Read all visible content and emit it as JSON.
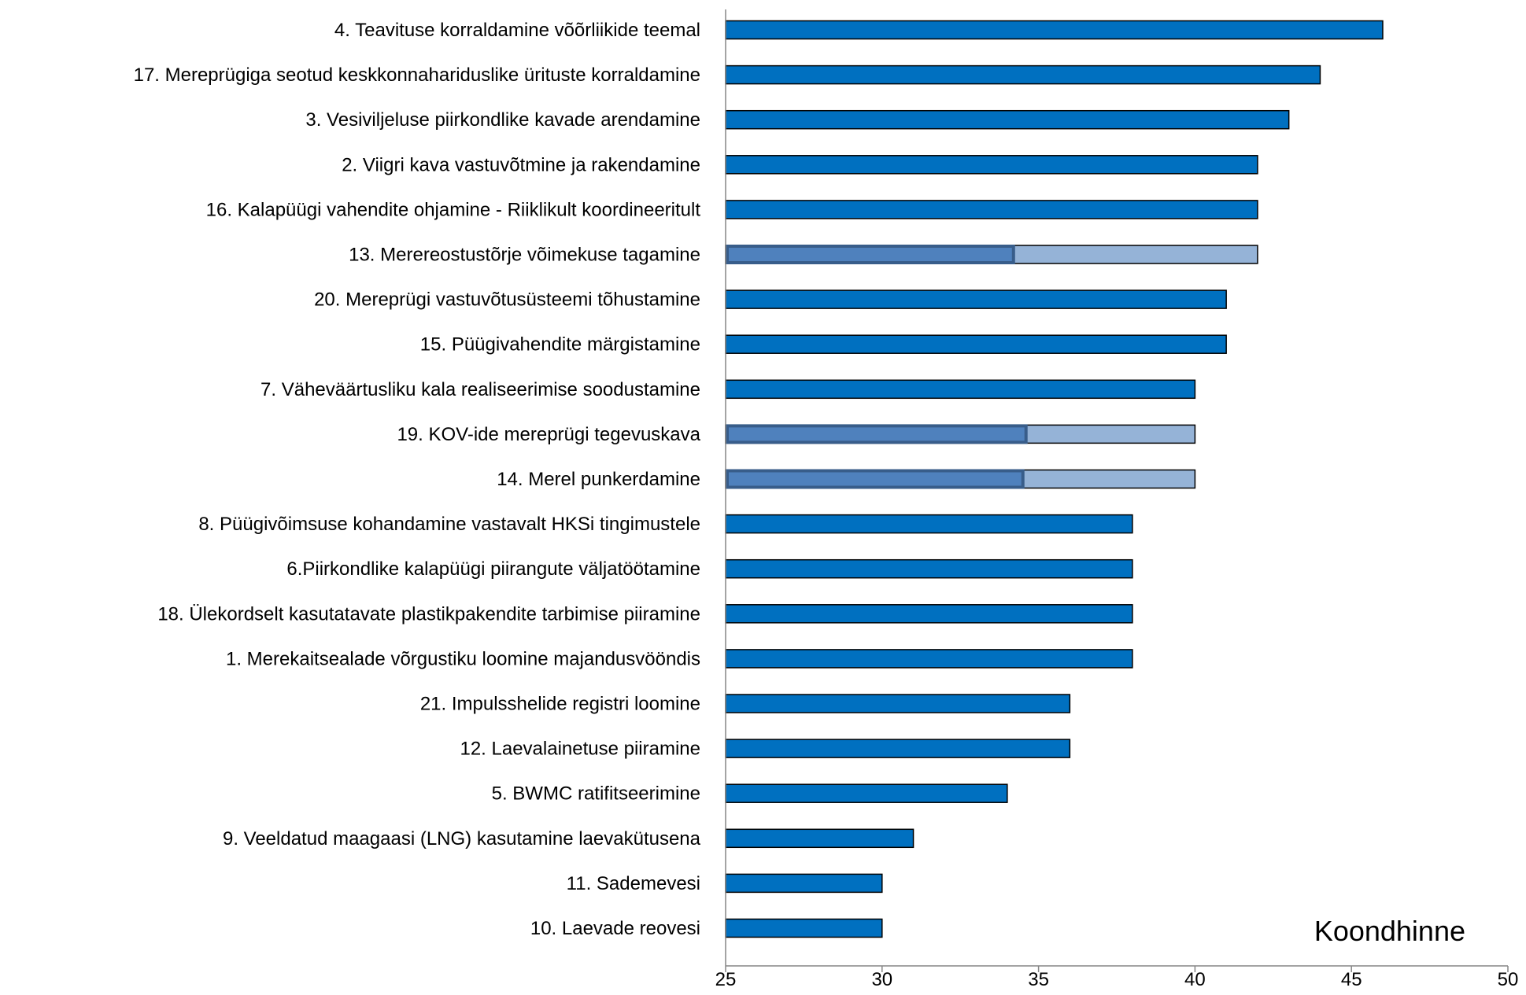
{
  "chart_data": {
    "type": "bar",
    "orientation": "horizontal",
    "categories": [
      "4. Teavituse korraldamine võõrliikide teemal",
      "17. Mereprügiga seotud keskkonnahariduslike ürituste korraldamine",
      "3. Vesiviljeluse piirkondlike kavade arendamine",
      "2. Viigri kava vastuvõtmine ja rakendamine",
      "16. Kalapüügi vahendite ohjamine - Riiklikult koordineeritult",
      "13. Merereostustõrje võimekuse tagamine",
      "20. Mereprügi vastuvõtusüsteemi tõhustamine",
      "15. Püügivahendite märgistamine",
      "7. Väheväärtusliku kala realiseerimise soodustamine",
      "19. KOV-ide mereprügi tegevuskava",
      "14. Merel punkerdamine",
      "8. Püügivõimsuse kohandamine vastavalt HKSi tingimustele",
      "6.Piirkondlike kalapüügi piirangute väljatöötamine",
      "18. Ülekordselt kasutatavate plastikpakendite tarbimise piiramine",
      "1. Merekaitsealade võrgustiku loomine majandusvööndis",
      "21. Impulsshelide registri loomine",
      "12. Laevalainetuse piiramine",
      "5. BWMC ratifitseerimine",
      "9. Veeldatud maagaasi (LNG) kasutamine laevakütusena",
      "11. Sademevesi",
      "10. Laevade reovesi"
    ],
    "series": [
      {
        "values": [
          46,
          44,
          43,
          42,
          42,
          42,
          41,
          41,
          40,
          40,
          40,
          38,
          38,
          38,
          38,
          36,
          36,
          34,
          31,
          30,
          30
        ]
      },
      {
        "values": [
          null,
          null,
          null,
          null,
          null,
          34.2,
          null,
          null,
          null,
          34.6,
          34.5,
          null,
          null,
          null,
          null,
          null,
          null,
          null,
          null,
          null,
          null
        ]
      }
    ],
    "highlighted_categories": [
      "13. Merereostustõrje võimekuse tagamine",
      "19. KOV-ide mereprügi tegevuskava",
      "14. Merel punkerdamine"
    ],
    "xlabel": "Koondhinne",
    "xlim": [
      25,
      50
    ],
    "xticks": [
      25,
      30,
      35,
      40,
      45,
      50
    ],
    "grid": false,
    "colors": {
      "bar": "#0070C0",
      "bar_light": "#95B3D7",
      "inner_bar": "#4F81BD",
      "inner_border": "#385D8A",
      "bar_border": "#000000",
      "axis": "#868686"
    }
  }
}
